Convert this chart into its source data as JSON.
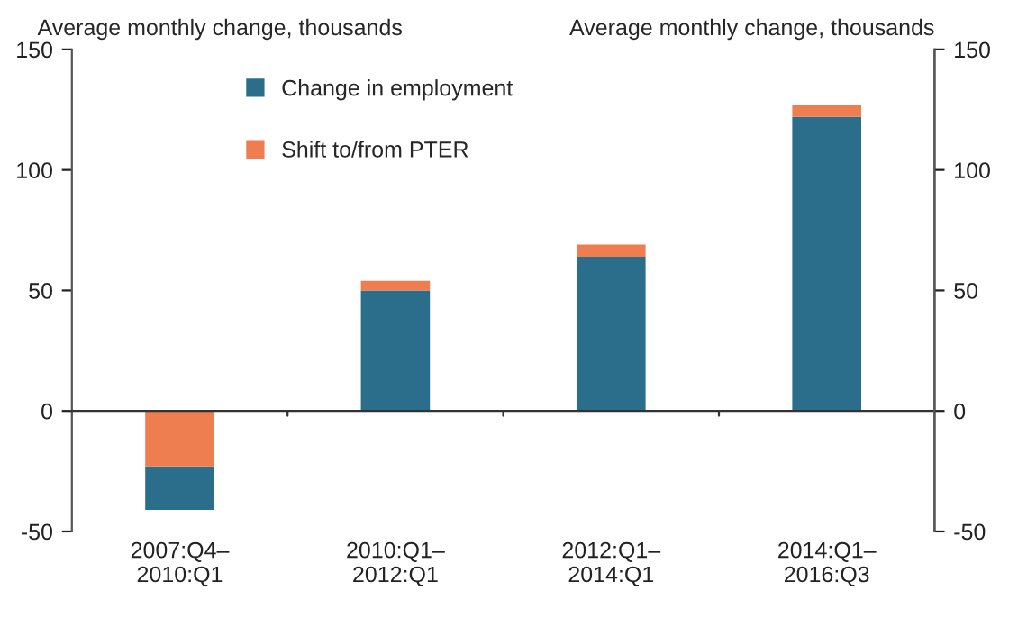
{
  "chart_data": {
    "type": "bar",
    "ylabel": "Average monthly change, thousands",
    "y2label": "Average monthly change, thousands",
    "categories": [
      "2007:Q4–\n2010:Q1",
      "2010:Q1–\n2012:Q1",
      "2012:Q1–\n2014:Q1",
      "2014:Q1–\n2016:Q3"
    ],
    "series": [
      {
        "name": "Change in employment",
        "color": "#2a6e8b",
        "values": [
          -18,
          50,
          64,
          122
        ],
        "base": [
          -23,
          0,
          0,
          0
        ]
      },
      {
        "name": "Shift to/from PTER",
        "color": "#ee7d50",
        "values": [
          -23,
          4,
          5,
          5
        ],
        "base": [
          0,
          50,
          64,
          122
        ]
      }
    ],
    "ylim": [
      -50,
      150
    ],
    "yticks": [
      -50,
      0,
      50,
      100,
      150
    ],
    "y2lim": [
      -50,
      150
    ],
    "y2ticks": [
      -50,
      0,
      50,
      100,
      150
    ],
    "legend": "top left"
  }
}
